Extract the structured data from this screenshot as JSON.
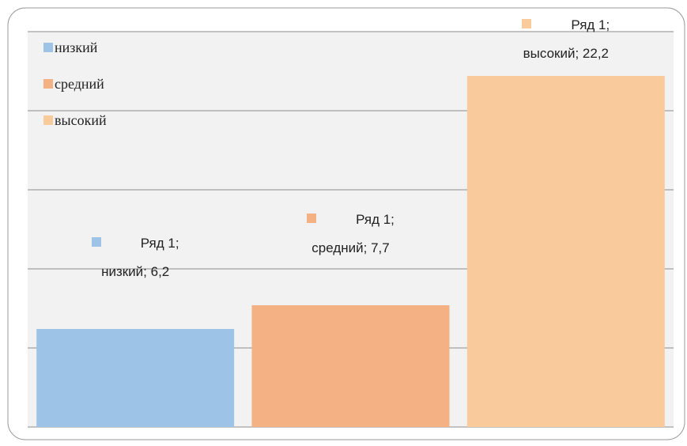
{
  "chart_data": {
    "type": "bar",
    "categories": [
      "низкий",
      "средний",
      "высокий"
    ],
    "series": [
      {
        "name": "Ряд 1",
        "values": [
          6.2,
          7.7,
          22.2
        ],
        "colors": [
          "#9dc3e6",
          "#f4b183",
          "#f9ca9b"
        ],
        "value_labels": [
          "Ряд 1; низкий; 6,2",
          "Ряд 1; средний; 7,7",
          "Ряд 1; высокий; 22,2"
        ]
      }
    ],
    "ylim": [
      0,
      25
    ],
    "yticks": [
      0,
      5,
      10,
      15,
      20,
      25
    ],
    "grid": true,
    "legend": "top-left"
  }
}
